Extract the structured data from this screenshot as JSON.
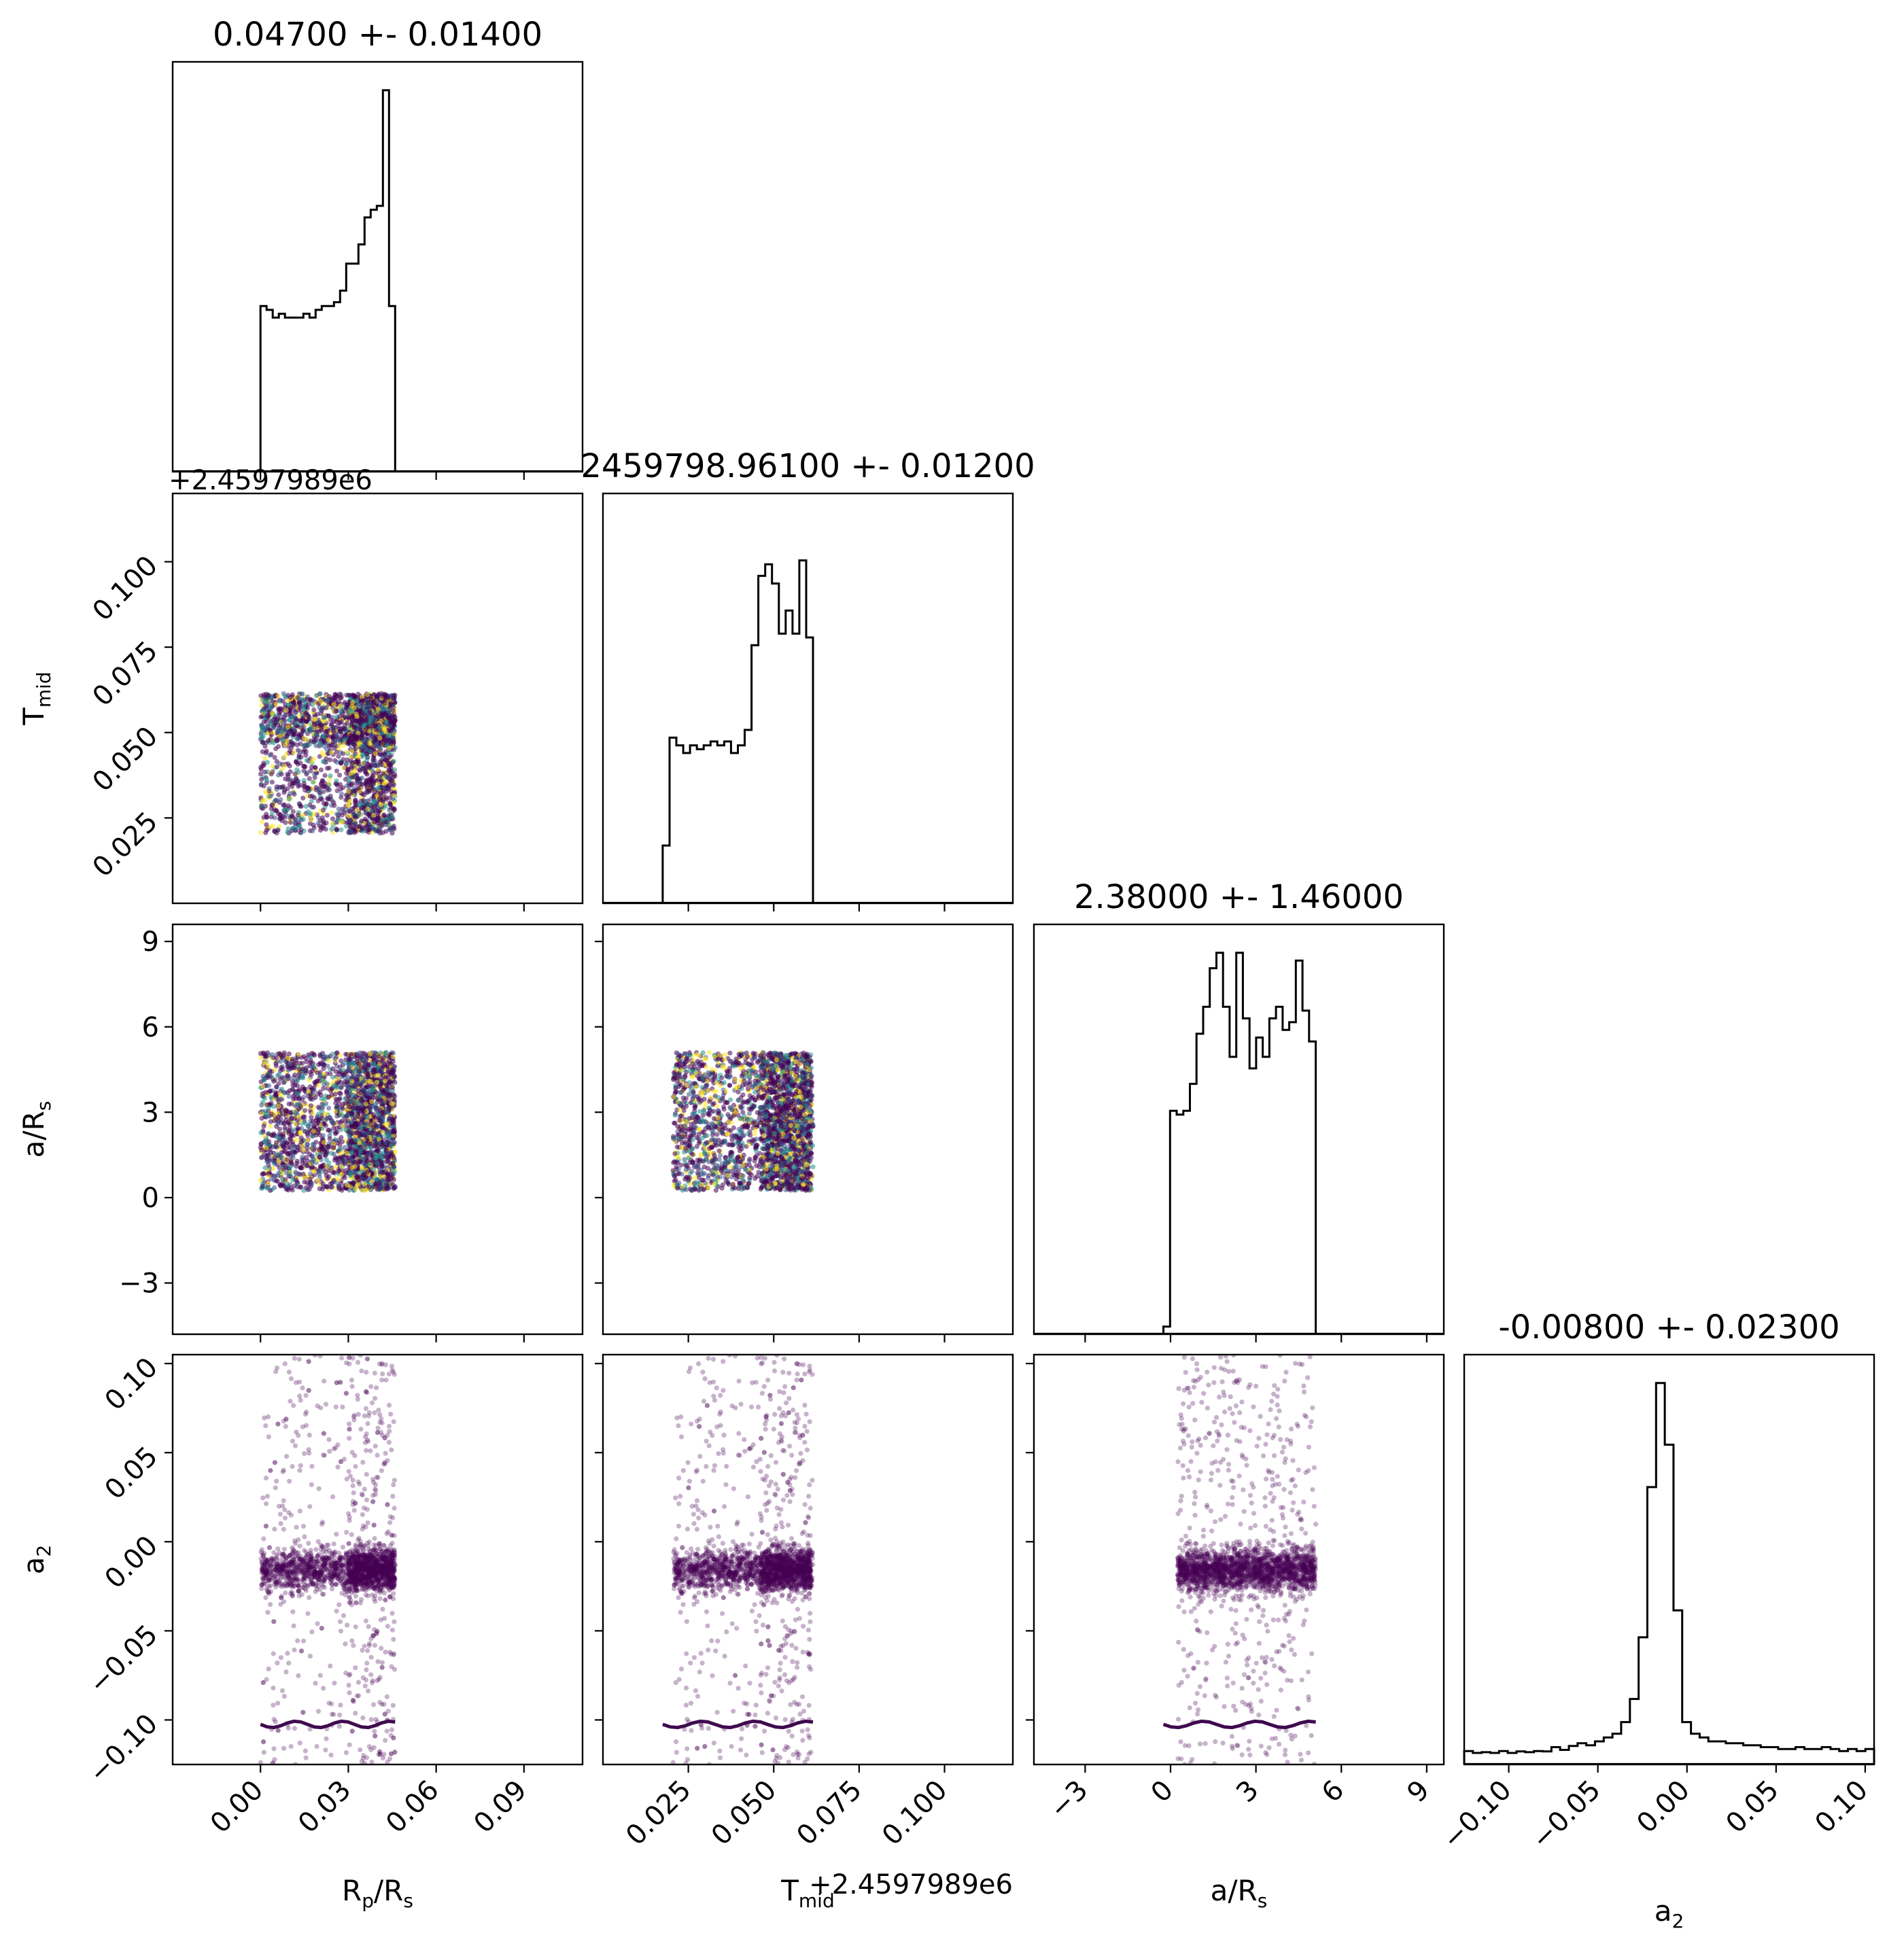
{
  "chart_data": {
    "type": "corner",
    "parameters": [
      {
        "key": "rp",
        "label_main": "R",
        "label_sub1": "p",
        "label_mid": "/R",
        "label_sub2": "s",
        "title": "0.04700 +- 0.01400",
        "range": [
          -0.03,
          0.11
        ],
        "ticks": [
          0.0,
          0.03,
          0.06,
          0.09
        ],
        "tick_labels": [
          "0.00",
          "0.03",
          "0.06",
          "0.09"
        ],
        "hist_edges": [
          0.0,
          0.046
        ],
        "hist_counts": [
          0.43,
          0.42,
          0.4,
          0.41,
          0.4,
          0.4,
          0.4,
          0.41,
          0.4,
          0.42,
          0.43,
          0.43,
          0.44,
          0.47,
          0.54,
          0.54,
          0.59,
          0.66,
          0.68,
          0.69,
          0.99,
          0.43
        ]
      },
      {
        "key": "tmid",
        "label_main": "T",
        "label_sub1": "mid",
        "label_mid": "",
        "label_sub2": "",
        "title": "2459798.96100 +- 0.01200",
        "offset_text": "+2.4597989e6",
        "range": [
          0.0,
          0.12
        ],
        "ticks": [
          0.025,
          0.05,
          0.075,
          0.1
        ],
        "tick_labels": [
          "0.025",
          "0.050",
          "0.075",
          "0.100"
        ],
        "hist_edges": [
          0.0175,
          0.0615
        ],
        "hist_counts": [
          0.15,
          0.43,
          0.41,
          0.39,
          0.41,
          0.4,
          0.41,
          0.42,
          0.41,
          0.42,
          0.39,
          0.41,
          0.45,
          0.67,
          0.85,
          0.88,
          0.83,
          0.7,
          0.76,
          0.7,
          0.89,
          0.69
        ]
      },
      {
        "key": "ars",
        "label_main": "a/R",
        "label_sub1": "",
        "label_mid": "",
        "label_sub2": "s",
        "title": "2.38000 +- 1.46000",
        "range": [
          -4.8,
          9.6
        ],
        "ticks": [
          -3,
          0,
          3,
          6,
          9
        ],
        "tick_labels": [
          "−3",
          "0",
          "3",
          "6",
          "9"
        ],
        "hist_edges": [
          -0.25,
          5.1
        ],
        "hist_counts": [
          0.02,
          0.58,
          0.57,
          0.58,
          0.65,
          0.78,
          0.85,
          0.95,
          0.99,
          0.85,
          0.72,
          0.99,
          0.82,
          0.69,
          0.77,
          0.72,
          0.82,
          0.85,
          0.79,
          0.81,
          0.97,
          0.84,
          0.76
        ]
      },
      {
        "key": "a2",
        "label_main": "a",
        "label_sub1": "",
        "label_mid": "",
        "label_sub2": "2",
        "title": "-0.00800 +- 0.02300",
        "range": [
          -0.125,
          0.105
        ],
        "ticks": [
          -0.1,
          -0.05,
          0.0,
          0.05,
          0.1
        ],
        "tick_labels": [
          "−0.10",
          "−0.05",
          "0.00",
          "0.05",
          "0.10"
        ],
        "hist_edges": [
          -0.125,
          0.105
        ],
        "hist_counts": [
          0.035,
          0.03,
          0.032,
          0.03,
          0.035,
          0.03,
          0.034,
          0.032,
          0.035,
          0.034,
          0.045,
          0.038,
          0.048,
          0.055,
          0.05,
          0.06,
          0.07,
          0.08,
          0.11,
          0.17,
          0.33,
          0.72,
          0.99,
          0.83,
          0.4,
          0.11,
          0.08,
          0.07,
          0.06,
          0.06,
          0.055,
          0.055,
          0.05,
          0.05,
          0.045,
          0.045,
          0.04,
          0.04,
          0.045,
          0.04,
          0.04,
          0.045,
          0.04,
          0.035,
          0.04,
          0.035,
          0.04
        ]
      }
    ],
    "scatter_pairs": [
      {
        "x": "rp",
        "y": "tmid"
      },
      {
        "x": "rp",
        "y": "ars"
      },
      {
        "x": "tmid",
        "y": "ars"
      },
      {
        "x": "rp",
        "y": "a2"
      },
      {
        "x": "tmid",
        "y": "a2"
      },
      {
        "x": "ars",
        "y": "a2"
      }
    ],
    "colors": {
      "points": "#440154",
      "alt_points": [
        "#21918c",
        "#fde725",
        "#3b528b"
      ],
      "line": "#000000"
    }
  }
}
